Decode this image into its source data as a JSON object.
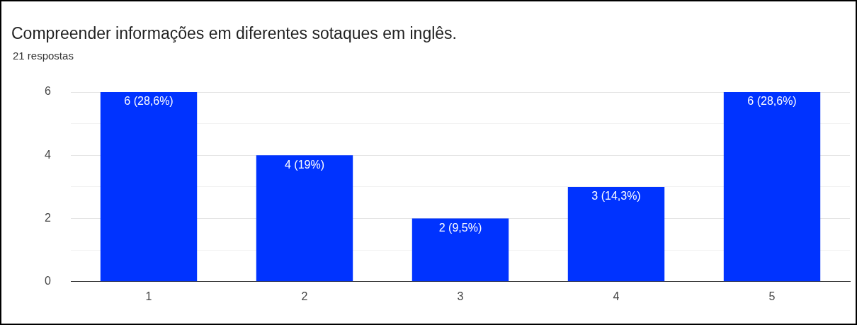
{
  "chart_data": {
    "type": "bar",
    "title": "Compreender informações em diferentes sotaques em inglês.",
    "subtitle": "21 respostas",
    "categories": [
      "1",
      "2",
      "3",
      "4",
      "5"
    ],
    "values": [
      6,
      4,
      2,
      3,
      6
    ],
    "value_labels": [
      "6 (28,6%)",
      "4 (19%)",
      "2 (9,5%)",
      "3 (14,3%)",
      "6 (28,6%)"
    ],
    "color": "#0033ff",
    "ylim": [
      0,
      6
    ],
    "yticks": [
      0,
      {
        "value": 1,
        "label": null
      },
      2,
      {
        "value": 3,
        "label": null
      },
      4,
      {
        "value": 5,
        "label": null
      },
      6
    ],
    "grid": "y"
  }
}
